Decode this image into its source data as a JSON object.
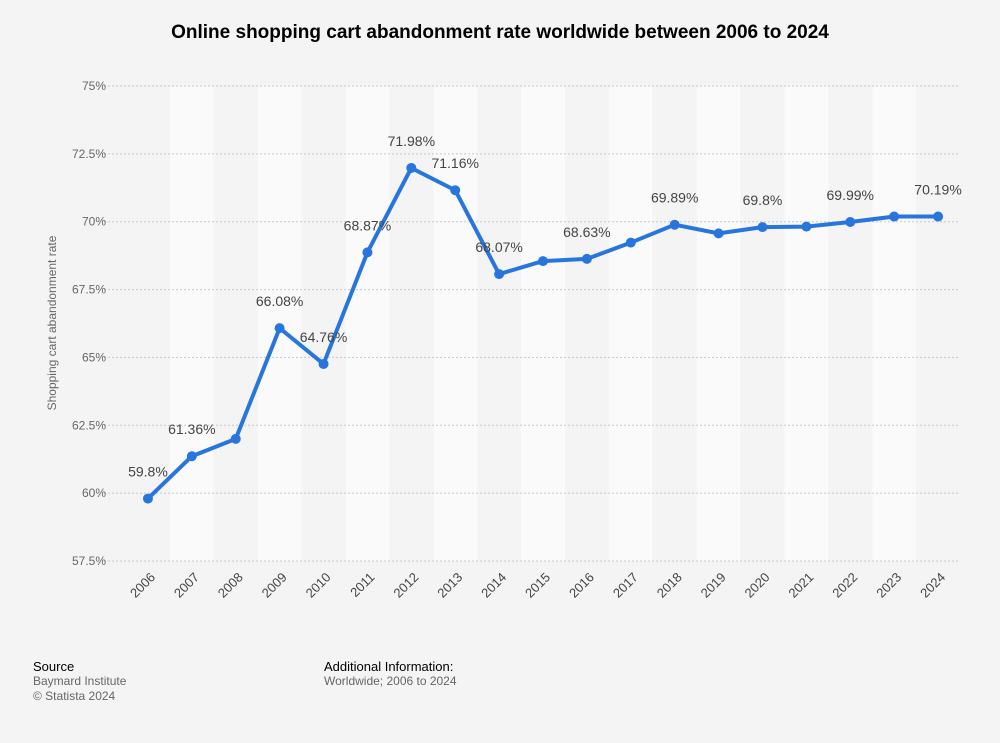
{
  "chart_data": {
    "type": "line",
    "title": "Online shopping cart abandonment rate worldwide between 2006 to 2024",
    "xlabel": "",
    "ylabel": "Shopping cart abandonment rate",
    "categories": [
      "2006",
      "2007",
      "2008",
      "2009",
      "2010",
      "2011",
      "2012",
      "2013",
      "2014",
      "2015",
      "2016",
      "2017",
      "2018",
      "2019",
      "2020",
      "2021",
      "2022",
      "2023",
      "2024"
    ],
    "values": [
      59.8,
      61.36,
      62.0,
      66.08,
      64.76,
      68.87,
      71.98,
      71.16,
      68.07,
      68.55,
      68.63,
      69.23,
      69.89,
      69.57,
      69.8,
      69.82,
      69.99,
      70.19,
      70.19
    ],
    "data_labels": [
      "59.8%",
      "61.36%",
      "",
      "66.08%",
      "64.76%",
      "68.87%",
      "71.98%",
      "71.16%",
      "68.07%",
      "",
      "68.63%",
      "",
      "69.89%",
      "",
      "69.8%",
      "",
      "69.99%",
      "",
      "70.19%"
    ],
    "ylim": [
      57.5,
      75
    ],
    "yticks": [
      "57.5%",
      "60%",
      "62.5%",
      "65%",
      "67.5%",
      "70%",
      "72.5%",
      "75%"
    ],
    "grid": true,
    "line_color": "#2876dd"
  },
  "footer": {
    "source_heading": "Source",
    "source_lines": [
      "Baymard Institute",
      "© Statista 2024"
    ],
    "info_heading": "Additional Information:",
    "info_text": "Worldwide; 2006 to 2024"
  }
}
